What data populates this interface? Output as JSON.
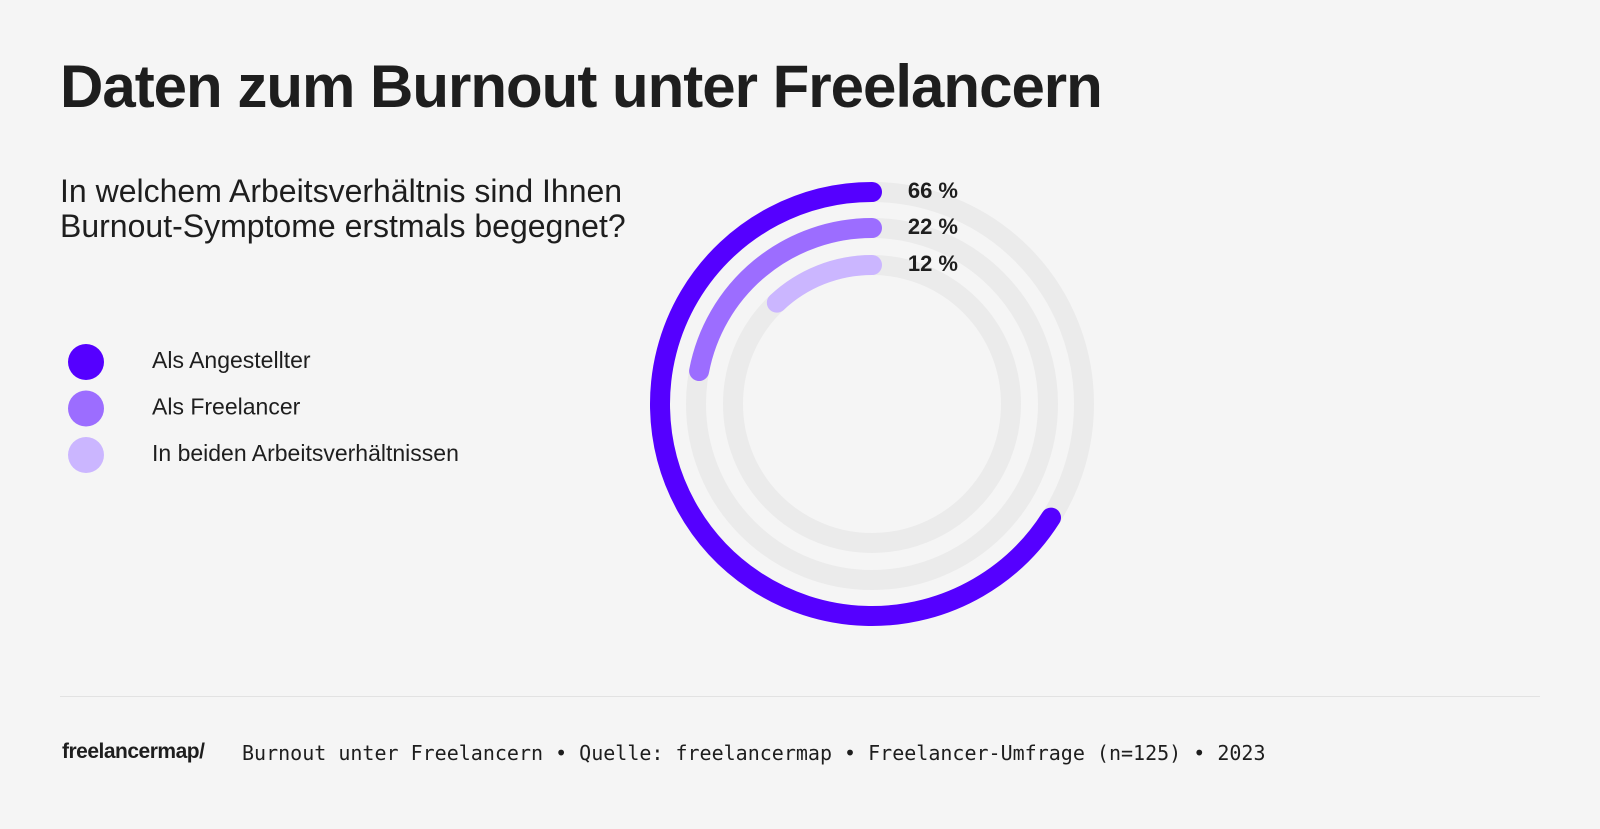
{
  "chart_data": {
    "type": "radialbar",
    "title": "Daten zum Burnout unter Freelancern",
    "subtitle": "In welchem Arbeitsverhältnis sind Ihnen Burnout-Symptome erstmals begegnet?",
    "categories": [
      "Als Angestellter",
      "Als Freelancer",
      "In beiden Arbeitsverhältnissen"
    ],
    "values": [
      66,
      22,
      12
    ],
    "value_labels": [
      "66 %",
      "22 %",
      "12 %"
    ],
    "colors": [
      "#5500ff",
      "#9c6dff",
      "#cbb6ff"
    ],
    "ylim": [
      0,
      100
    ]
  },
  "footer": {
    "brand": "freelancermap/",
    "source": "Burnout unter Freelancern • Quelle: freelancermap • Freelancer-Umfrage (n=125) • 2023"
  }
}
